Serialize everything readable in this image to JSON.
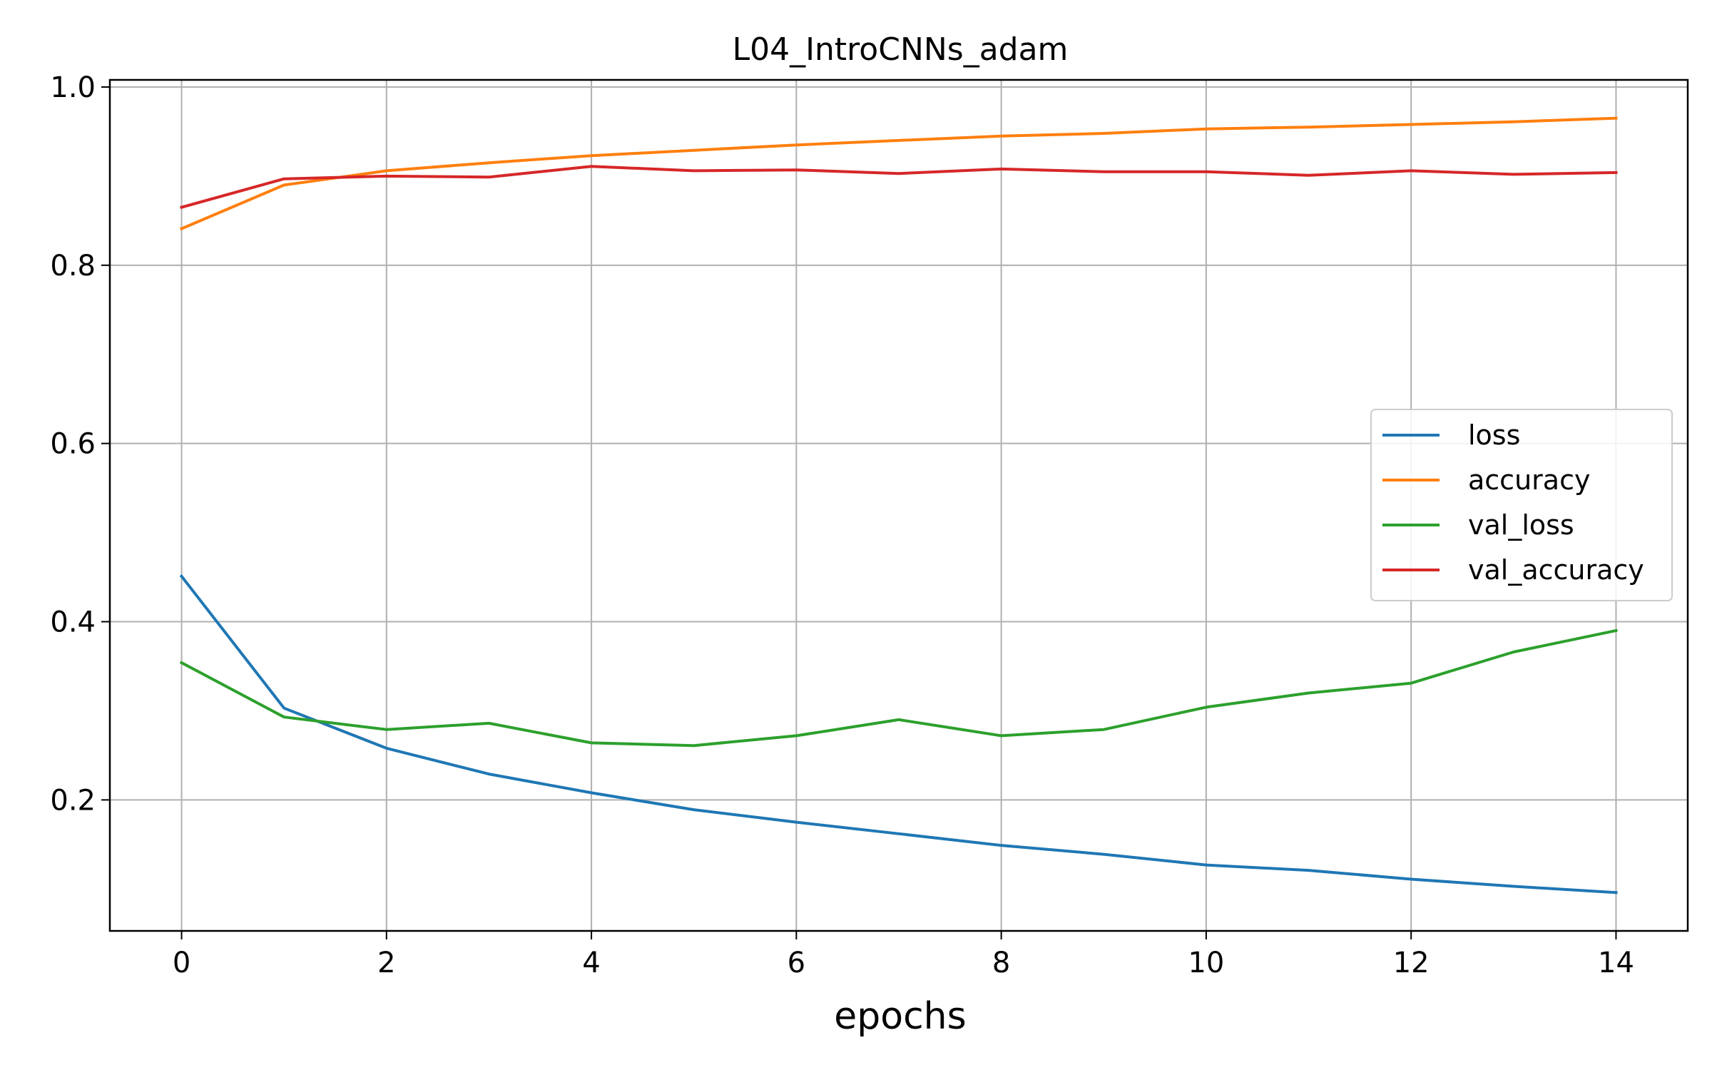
{
  "chart_data": {
    "type": "line",
    "title": "L04_IntroCNNs_adam",
    "xlabel": "epochs",
    "ylabel": "",
    "x": [
      0,
      1,
      2,
      3,
      4,
      5,
      6,
      7,
      8,
      9,
      10,
      11,
      12,
      13,
      14
    ],
    "xlim": [
      -0.7,
      14.7
    ],
    "ylim": [
      0.053,
      1.008
    ],
    "xticks": [
      0,
      2,
      4,
      6,
      8,
      10,
      12,
      14
    ],
    "xtick_labels": [
      "0",
      "2",
      "4",
      "6",
      "8",
      "10",
      "12",
      "14"
    ],
    "yticks": [
      0.2,
      0.4,
      0.6,
      0.8,
      1.0
    ],
    "ytick_labels": [
      "0.2",
      "0.4",
      "0.6",
      "0.8",
      "1.0"
    ],
    "grid": true,
    "legend_position": "center-right",
    "series": [
      {
        "name": "loss",
        "color": "#1f77b4",
        "values": [
          0.451,
          0.303,
          0.258,
          0.229,
          0.208,
          0.189,
          0.175,
          0.162,
          0.149,
          0.139,
          0.127,
          0.121,
          0.111,
          0.103,
          0.096
        ]
      },
      {
        "name": "accuracy",
        "color": "#ff7f0e",
        "values": [
          0.841,
          0.89,
          0.906,
          0.915,
          0.923,
          0.929,
          0.935,
          0.94,
          0.945,
          0.948,
          0.953,
          0.955,
          0.958,
          0.961,
          0.965
        ]
      },
      {
        "name": "val_loss",
        "color": "#2ca02c",
        "values": [
          0.354,
          0.293,
          0.279,
          0.286,
          0.264,
          0.261,
          0.272,
          0.29,
          0.272,
          0.279,
          0.304,
          0.32,
          0.331,
          0.366,
          0.39
        ]
      },
      {
        "name": "val_accuracy",
        "color": "#d62728",
        "values": [
          0.865,
          0.897,
          0.9,
          0.899,
          0.911,
          0.906,
          0.907,
          0.903,
          0.908,
          0.905,
          0.905,
          0.901,
          0.906,
          0.902,
          0.904
        ]
      }
    ]
  }
}
